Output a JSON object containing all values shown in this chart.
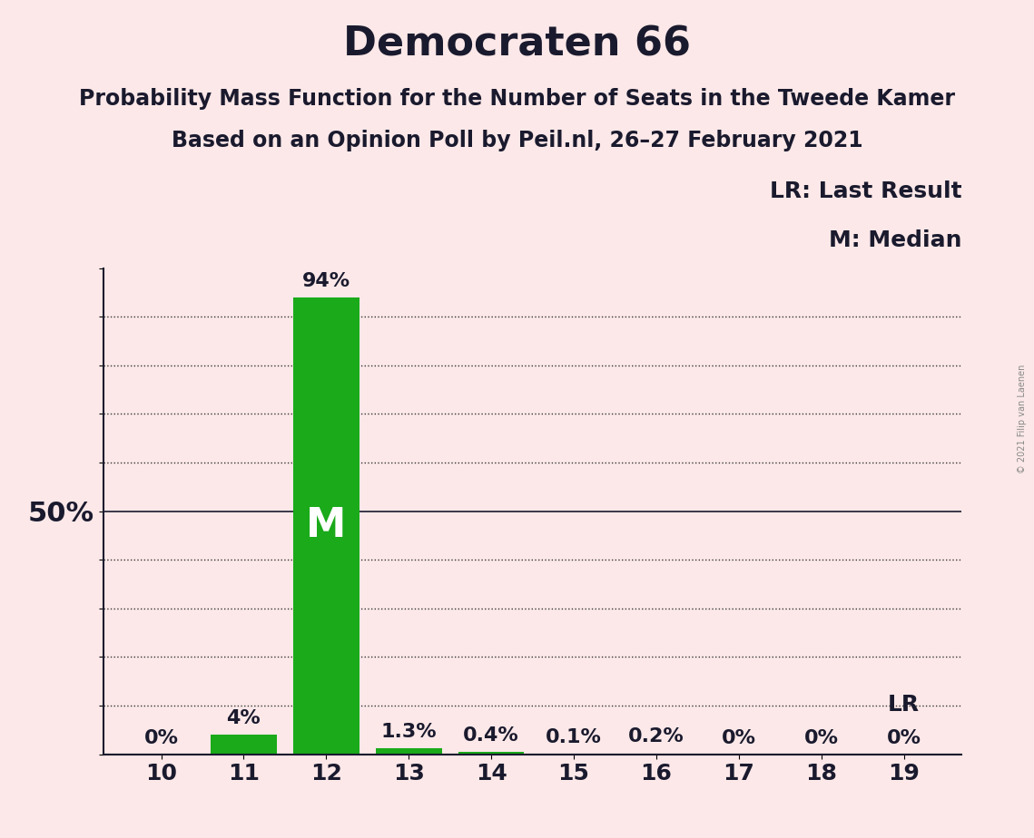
{
  "title": "Democraten 66",
  "subtitle1": "Probability Mass Function for the Number of Seats in the Tweede Kamer",
  "subtitle2": "Based on an Opinion Poll by Peil.nl, 26–27 February 2021",
  "copyright": "© 2021 Filip van Laenen",
  "seats": [
    10,
    11,
    12,
    13,
    14,
    15,
    16,
    17,
    18,
    19
  ],
  "probabilities": [
    0.0,
    4.0,
    94.0,
    1.3,
    0.4,
    0.1,
    0.2,
    0.0,
    0.0,
    0.0
  ],
  "bar_labels": [
    "0%",
    "4%",
    "94%",
    "1.3%",
    "0.4%",
    "0.1%",
    "0.2%",
    "0%",
    "0%",
    "0%"
  ],
  "bar_color": "#1aaa1a",
  "background_color": "#fce8e8",
  "median_seat": 12,
  "median_label": "M",
  "lr_seat": 19,
  "lr_label": "LR",
  "legend_lr": "LR: Last Result",
  "legend_m": "M: Median",
  "ylim": [
    0,
    100
  ],
  "ylabel_50": "50%",
  "title_fontsize": 32,
  "subtitle_fontsize": 17,
  "bar_label_fontsize": 16,
  "axis_tick_fontsize": 18,
  "ytick_fontsize": 22,
  "legend_fontsize": 18,
  "median_fontsize": 32,
  "lr_inline_fontsize": 18,
  "copyright_fontsize": 7
}
